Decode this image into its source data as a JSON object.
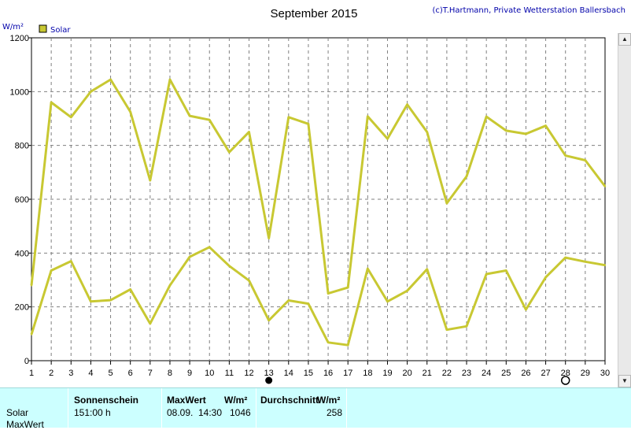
{
  "chart_data": {
    "type": "line",
    "title": "September 2015",
    "copyright": "(c)T.Hartmann, Private Wetterstation Ballersbach",
    "ylabel": "W/m²",
    "ylim": [
      0,
      1200
    ],
    "yticks": [
      0,
      200,
      400,
      600,
      800,
      1000,
      1200
    ],
    "x": [
      1,
      2,
      3,
      4,
      5,
      6,
      7,
      8,
      9,
      10,
      11,
      12,
      13,
      14,
      15,
      16,
      17,
      18,
      19,
      20,
      21,
      22,
      23,
      24,
      25,
      26,
      27,
      28,
      29,
      30
    ],
    "grid": true,
    "legend": {
      "position": "top-left",
      "label": "Solar"
    },
    "series": [
      {
        "name": "Solar",
        "role": "max",
        "color": "#c8c832",
        "values": [
          280,
          960,
          905,
          1000,
          1045,
          925,
          670,
          1045,
          910,
          895,
          775,
          850,
          455,
          905,
          880,
          250,
          272,
          908,
          825,
          952,
          850,
          585,
          685,
          907,
          855,
          843,
          873,
          762,
          745,
          648
        ]
      },
      {
        "name": "Solar",
        "role": "average",
        "color": "#c8c832",
        "values": [
          98,
          335,
          370,
          220,
          225,
          265,
          138,
          280,
          386,
          422,
          352,
          298,
          150,
          224,
          212,
          68,
          58,
          342,
          220,
          260,
          340,
          115,
          128,
          322,
          335,
          190,
          310,
          383,
          368,
          355
        ]
      }
    ],
    "markers": {
      "filled_circle_day": 13,
      "open_circle_day": 28
    }
  },
  "panel": {
    "row_label_solar": "Solar",
    "row_label_maxwert": "MaxWert",
    "sonnenschein_header": "Sonnenschein",
    "sonnenschein_value": "151:00 h",
    "maxwert_header": "MaxWert",
    "maxwert_unit": "W/m²",
    "maxwert_date": "08.09.",
    "maxwert_time": "14:30",
    "maxwert_value": "1046",
    "durchschnitt_header": "Durchschnitt",
    "durchschnitt_unit": "W/m²",
    "durchschnitt_value": "258"
  },
  "scrollbar": {
    "up_icon": "▲",
    "down_icon": "▼"
  }
}
